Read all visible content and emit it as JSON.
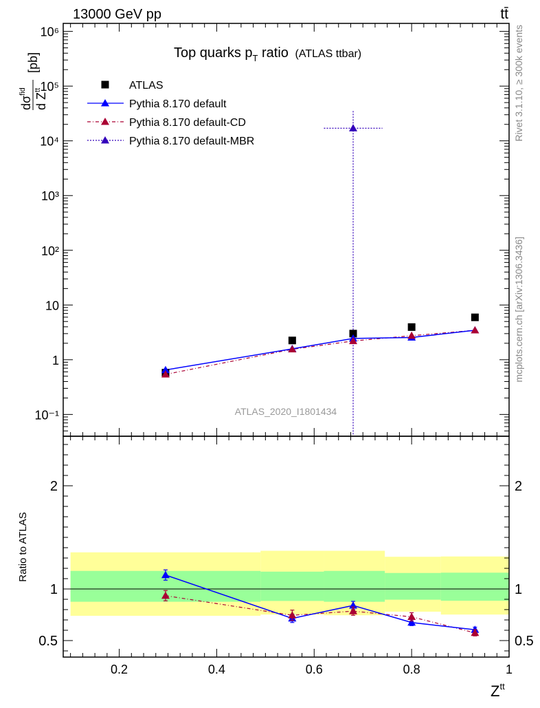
{
  "header": {
    "energy_label": "13000 GeV pp",
    "process_label": "tt̄"
  },
  "side": {
    "rivet_label": "Rivet 3.1.10, ≥ 300k events",
    "source_label": "mcplots.cern.ch [arXiv:1306.3436]"
  },
  "chart_data": [
    {
      "type": "scatter",
      "panel": "main",
      "title": "Top quarks p",
      "title_sub": "T",
      "title_suffix": " ratio",
      "title_note": "(ATLAS ttbar)",
      "xlabel": "Z",
      "xlabel_sup": "tt",
      "ylabel": "dσ/dZ [pb]",
      "ylabel_parts": {
        "num": "dσ",
        "num_sup": "fid",
        "den": "d Z",
        "den_sup": "tt",
        "unit": "[pb]"
      },
      "yscale": "log",
      "xlim": [
        0.085,
        1.0
      ],
      "ylim": [
        0.04,
        1400000
      ],
      "y_tick_labels": [
        "10⁶",
        "10⁵",
        "10⁴",
        "10³",
        "10²",
        "10",
        "1",
        "10⁻¹"
      ],
      "y_tick_values": [
        1000000,
        100000,
        10000,
        1000,
        100,
        10,
        1,
        0.1
      ],
      "watermark": "ATLAS_2020_I1801434",
      "legend": [
        "ATLAS",
        "Pythia 8.170 default",
        "Pythia 8.170 default-CD",
        "Pythia 8.170 default-MBR"
      ],
      "legend_position": "top-left",
      "series": [
        {
          "name": "ATLAS",
          "color": "#000000",
          "x": [
            0.295,
            0.555,
            0.68,
            0.8,
            0.93
          ],
          "y": [
            0.58,
            2.25,
            3.0,
            3.95,
            5.95
          ]
        },
        {
          "name": "Pythia 8.170 default",
          "color": "#0000ff",
          "x": [
            0.295,
            0.555,
            0.68,
            0.8,
            0.93
          ],
          "y": [
            0.65,
            1.58,
            2.45,
            2.55,
            3.45
          ]
        },
        {
          "name": "Pythia 8.170 default-CD",
          "color": "#aa0033",
          "x": [
            0.295,
            0.555,
            0.68,
            0.8,
            0.93
          ],
          "y": [
            0.54,
            1.55,
            2.2,
            2.75,
            3.45
          ]
        },
        {
          "name": "Pythia 8.170 default-MBR",
          "color": "#3300bb",
          "points": [
            {
              "x": 0.68,
              "y": 17000,
              "xlo": 0.62,
              "xhi": 0.74,
              "ylo": 0.04,
              "yhi": 35000
            }
          ]
        }
      ]
    },
    {
      "type": "scatter",
      "panel": "ratio",
      "ylabel": "Ratio to ATLAS",
      "xlabel": "Z",
      "xlim": [
        0.085,
        1.0
      ],
      "ylim": [
        0.34,
        2.48
      ],
      "x_tick_labels": [
        "0.2",
        "0.4",
        "0.6",
        "0.8",
        "1"
      ],
      "x_tick_values": [
        0.2,
        0.4,
        0.6,
        0.8,
        1.0
      ],
      "y_tick_labels": [
        "0.5",
        "1",
        "2"
      ],
      "y_tick_values": [
        0.5,
        1,
        2
      ],
      "uncertainty_bands": [
        {
          "x0": 0.1,
          "x1": 0.49,
          "inner": [
            0.876,
            1.175
          ],
          "outer": [
            0.74,
            1.355
          ]
        },
        {
          "x0": 0.49,
          "x1": 0.62,
          "inner": [
            0.884,
            1.168
          ],
          "outer": [
            0.752,
            1.37
          ]
        },
        {
          "x0": 0.62,
          "x1": 0.745,
          "inner": [
            0.876,
            1.175
          ],
          "outer": [
            0.745,
            1.37
          ]
        },
        {
          "x0": 0.745,
          "x1": 0.86,
          "inner": [
            0.896,
            1.155
          ],
          "outer": [
            0.78,
            1.312
          ]
        },
        {
          "x0": 0.86,
          "x1": 1.0,
          "inner": [
            0.886,
            1.158
          ],
          "outer": [
            0.752,
            1.315
          ]
        }
      ],
      "series": [
        {
          "name": "Pythia 8.170 default",
          "color": "#0000ff",
          "x": [
            0.295,
            0.555,
            0.68,
            0.8,
            0.93
          ],
          "y": [
            1.135,
            0.715,
            0.84,
            0.675,
            0.605
          ],
          "err": [
            0.05,
            0.04,
            0.04,
            0.03,
            0.025
          ]
        },
        {
          "name": "Pythia 8.170 default-CD",
          "color": "#aa0033",
          "x": [
            0.295,
            0.555,
            0.68,
            0.8,
            0.93
          ],
          "y": [
            0.935,
            0.745,
            0.785,
            0.73,
            0.575
          ],
          "err": [
            0.05,
            0.05,
            0.04,
            0.04,
            0.03
          ]
        }
      ]
    }
  ]
}
